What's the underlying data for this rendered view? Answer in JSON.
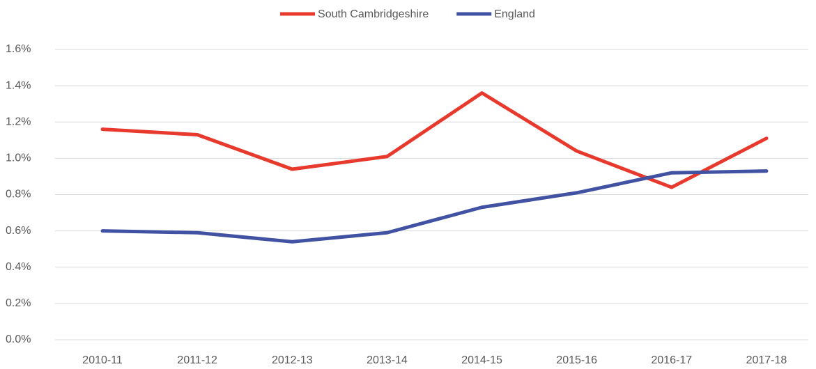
{
  "chart_data": {
    "type": "line",
    "categories": [
      "2010-11",
      "2011-12",
      "2012-13",
      "2013-14",
      "2014-15",
      "2015-16",
      "2016-17",
      "2017-18"
    ],
    "series": [
      {
        "name": "South Cambridgeshire",
        "color": "#e8392d",
        "values": [
          1.16,
          1.13,
          0.94,
          1.01,
          1.36,
          1.04,
          0.84,
          1.11
        ]
      },
      {
        "name": "England",
        "color": "#4152a3",
        "values": [
          0.6,
          0.59,
          0.54,
          0.59,
          0.73,
          0.81,
          0.92,
          0.93
        ]
      }
    ],
    "ylim": [
      0,
      1.6
    ],
    "yticks": [
      {
        "value": 0,
        "label": "0.0%"
      },
      {
        "value": 0.2,
        "label": "0.2%"
      },
      {
        "value": 0.4,
        "label": "0.4%"
      },
      {
        "value": 0.6,
        "label": "0.6%"
      },
      {
        "value": 0.8,
        "label": "0.8%"
      },
      {
        "value": 1.0,
        "label": "1.0%"
      },
      {
        "value": 1.2,
        "label": "1.2%"
      },
      {
        "value": 1.4,
        "label": "1.4%"
      },
      {
        "value": 1.6,
        "label": "1.6%"
      }
    ],
    "grid": true,
    "legend": "top"
  }
}
